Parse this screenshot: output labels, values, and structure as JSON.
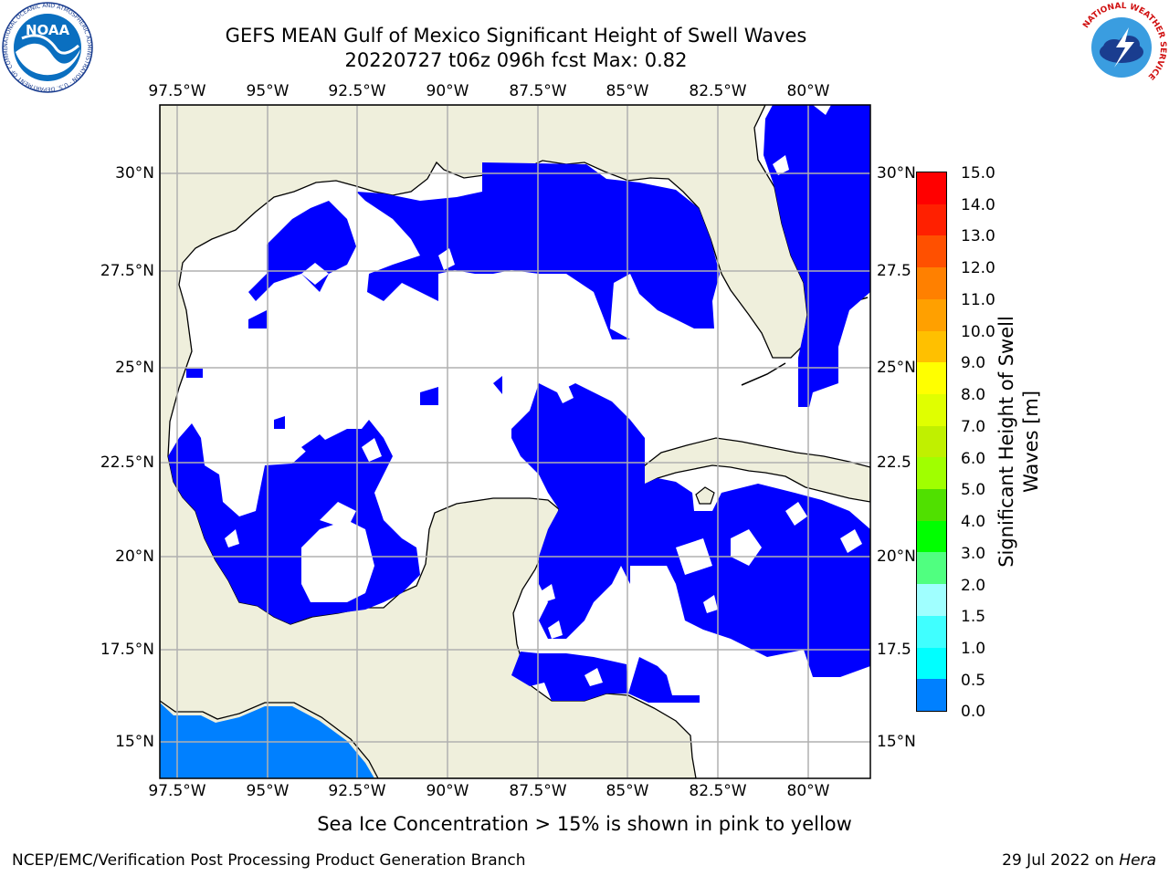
{
  "header": {
    "title_line1": "GEFS MEAN Gulf of Mexico Significant Height of Swell Waves",
    "title_line2": "20220727 t06z 096h fcst   Max: 0.82"
  },
  "map": {
    "lon_labels": [
      "97.5°W",
      "95°W",
      "92.5°W",
      "90°W",
      "87.5°W",
      "85°W",
      "82.5°W",
      "80°W"
    ],
    "lat_labels_left": [
      "30°N",
      "27.5°N",
      "25°N",
      "22.5°N",
      "20°N",
      "17.5°N",
      "15°N"
    ],
    "lat_labels_right": [
      "30°N",
      "27.5",
      "25°N",
      "22.5",
      "20°N",
      "17.5",
      "15°N"
    ],
    "colors": {
      "land": "#efefdc",
      "ocean_low": "#0000ff",
      "ocean_mid": "#0080ff",
      "grid": "#b0b0b0"
    }
  },
  "colorbar": {
    "title": "Significant Height of Swell Waves [m]",
    "title_line1": "Significant Height of Swell",
    "title_line2": "Waves [m]",
    "ticks": [
      "15.0",
      "14.0",
      "13.0",
      "12.0",
      "11.0",
      "10.0",
      "9.0",
      "8.0",
      "7.0",
      "6.0",
      "5.0",
      "4.0",
      "3.0",
      "2.0",
      "1.5",
      "1.0",
      "0.5",
      "0.0"
    ],
    "colors": [
      "#ff0000",
      "#ff2000",
      "#ff5000",
      "#ff8000",
      "#ffa000",
      "#ffc000",
      "#ffff00",
      "#e0ff00",
      "#c0f000",
      "#a0ff00",
      "#50e000",
      "#00ff00",
      "#50ff80",
      "#a0ffff",
      "#40ffff",
      "#00ffff",
      "#0080ff",
      "#0000ff"
    ]
  },
  "caption": "Sea Ice Concentration > 15% is shown in pink to yellow",
  "footer": {
    "left": "NCEP/EMC/Verification Post Processing Product Generation Branch",
    "date": "29 Jul 2022 on ",
    "machine": "Hera"
  },
  "logos": {
    "noaa": "NOAA",
    "noaa_ring_text": "NATIONAL OCEANIC AND ATMOSPHERIC ADMINISTRATION · U.S. DEPARTMENT OF COMMERCE",
    "nws_ring_text": "NATIONAL WEATHER SERVICE"
  }
}
